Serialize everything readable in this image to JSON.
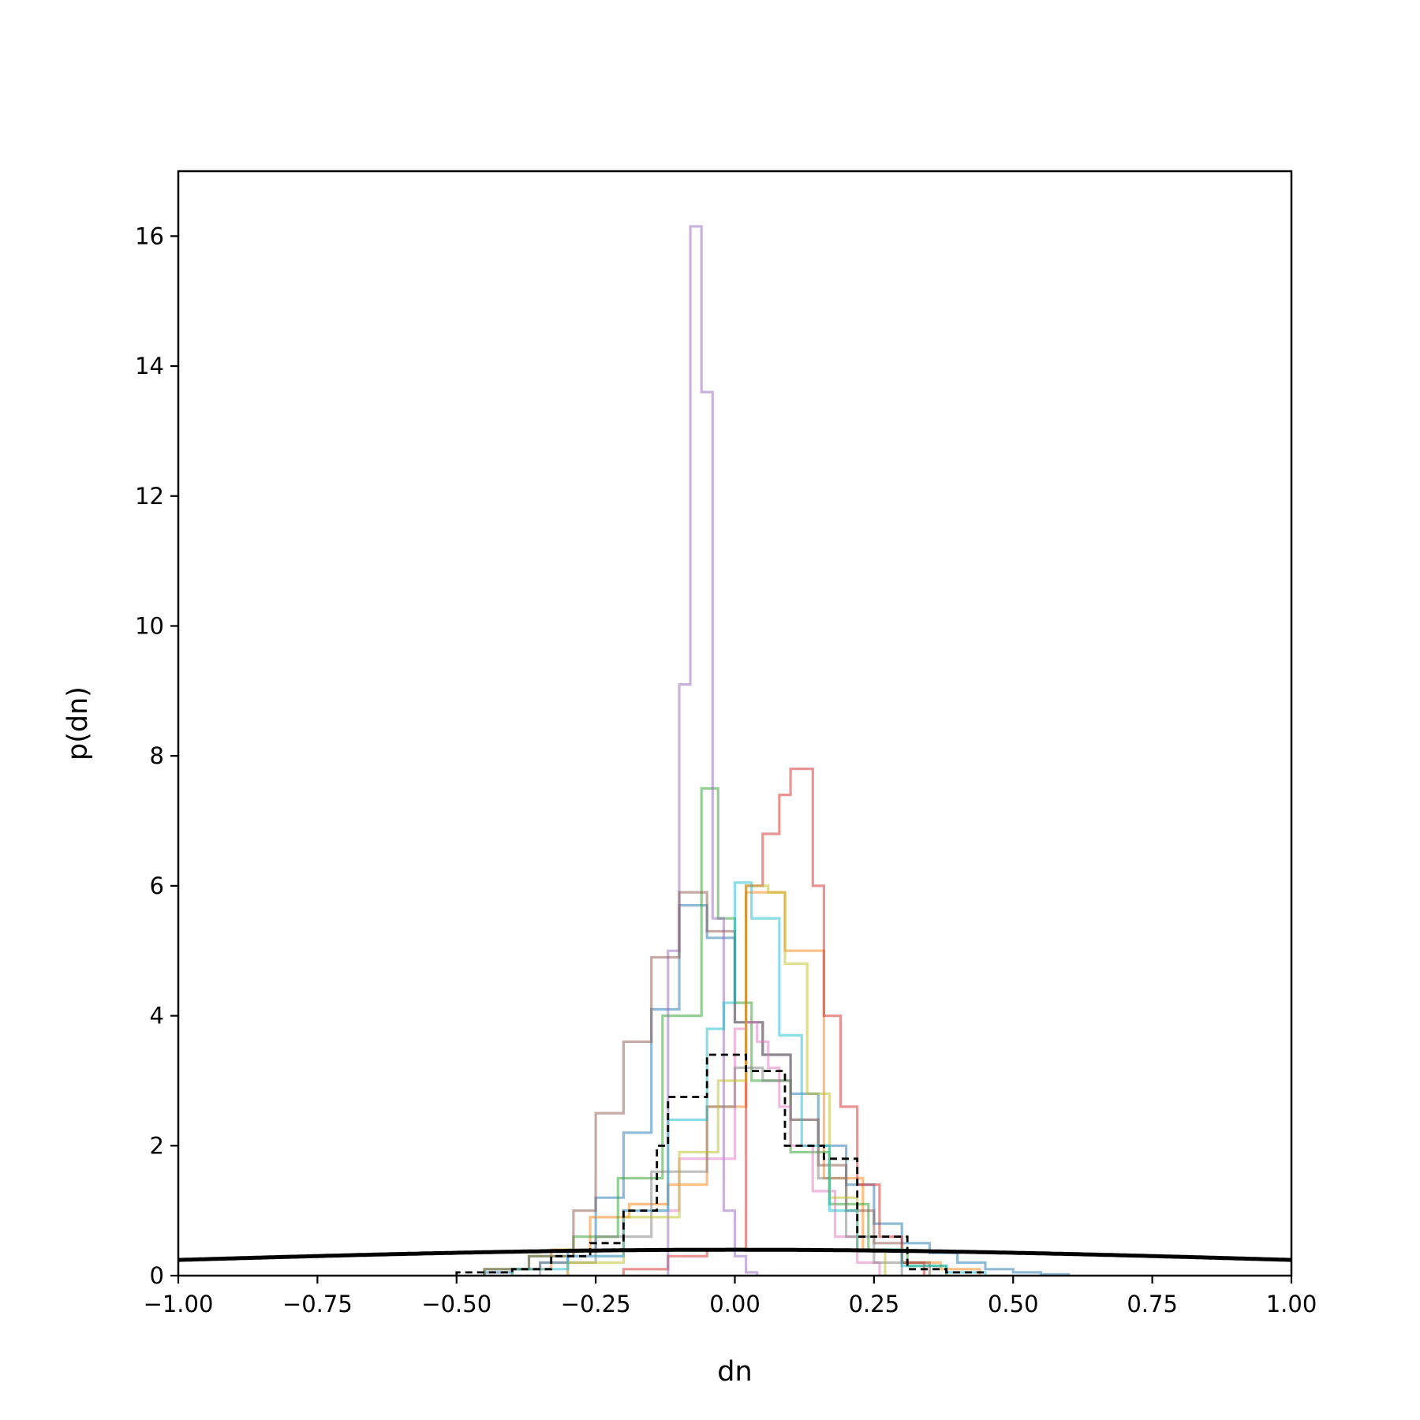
{
  "chart_data": {
    "type": "histogram",
    "xlabel": "dn",
    "ylabel": "p(dn)",
    "xlim": [
      -1.0,
      1.0
    ],
    "ylim": [
      0,
      17
    ],
    "x_ticks": [
      -1.0,
      -0.75,
      -0.5,
      -0.25,
      0.0,
      0.25,
      0.5,
      0.75,
      1.0
    ],
    "x_tick_labels": [
      "−1.00",
      "−0.75",
      "−0.50",
      "−0.25",
      "0.00",
      "0.25",
      "0.50",
      "0.75",
      "1.00"
    ],
    "y_ticks": [
      0,
      2,
      4,
      6,
      8,
      10,
      12,
      14,
      16
    ],
    "y_tick_labels": [
      "0",
      "2",
      "4",
      "6",
      "8",
      "10",
      "12",
      "14",
      "16"
    ],
    "grid": false,
    "legend": "none",
    "series": [
      {
        "color": "#1f77b4",
        "edges": [
          -0.45,
          -0.4,
          -0.35,
          -0.3,
          -0.25,
          -0.2,
          -0.15,
          -0.1,
          -0.05,
          0.0,
          0.05,
          0.1,
          0.15,
          0.2,
          0.25,
          0.3,
          0.35,
          0.4,
          0.45,
          0.5,
          0.55,
          0.6
        ],
        "values": [
          0.05,
          0.1,
          0.2,
          0.4,
          1.2,
          2.2,
          4.1,
          5.7,
          5.2,
          3.9,
          3.4,
          2.8,
          2.0,
          1.4,
          0.8,
          0.5,
          0.35,
          0.2,
          0.1,
          0.05,
          0.02
        ]
      },
      {
        "color": "#ff7f0e",
        "edges": [
          -0.4,
          -0.33,
          -0.26,
          -0.19,
          -0.12,
          -0.05,
          0.02,
          0.09,
          0.16,
          0.23,
          0.3,
          0.37,
          0.44
        ],
        "values": [
          0.1,
          0.4,
          0.9,
          1.1,
          1.4,
          2.6,
          5.9,
          5.0,
          1.5,
          0.4,
          0.2,
          0.1
        ]
      },
      {
        "color": "#2ca02c",
        "edges": [
          -0.45,
          -0.37,
          -0.29,
          -0.21,
          -0.13,
          -0.06,
          -0.03,
          0.0,
          0.03,
          0.1,
          0.17,
          0.24,
          0.31,
          0.38
        ],
        "values": [
          0.1,
          0.3,
          0.6,
          1.5,
          4.0,
          7.5,
          5.5,
          4.2,
          3.0,
          1.9,
          1.1,
          0.4,
          0.15
        ]
      },
      {
        "color": "#d62728",
        "edges": [
          -0.2,
          -0.12,
          -0.05,
          0.02,
          0.05,
          0.08,
          0.1,
          0.12,
          0.14,
          0.16,
          0.19,
          0.22,
          0.26,
          0.3,
          0.34
        ],
        "values": [
          0.1,
          0.3,
          0.4,
          6.0,
          6.8,
          7.4,
          7.8,
          7.8,
          6.0,
          4.0,
          2.6,
          1.4,
          0.6,
          0.2
        ]
      },
      {
        "color": "#9467bd",
        "edges": [
          -0.12,
          -0.1,
          -0.08,
          -0.06,
          -0.04,
          -0.02,
          0.0,
          0.02,
          0.04
        ],
        "values": [
          5.0,
          9.1,
          16.15,
          13.6,
          5.5,
          1.0,
          0.3,
          0.05
        ]
      },
      {
        "color": "#8c564b",
        "edges": [
          -0.45,
          -0.37,
          -0.29,
          -0.25,
          -0.2,
          -0.15,
          -0.1,
          -0.05,
          0.0,
          0.05,
          0.1,
          0.15,
          0.2,
          0.25,
          0.3,
          0.35
        ],
        "values": [
          0.1,
          0.3,
          1.0,
          2.5,
          3.6,
          4.9,
          5.9,
          5.3,
          3.9,
          3.4,
          2.4,
          1.7,
          1.0,
          0.5,
          0.2
        ]
      },
      {
        "color": "#e377c2",
        "edges": [
          -0.3,
          -0.2,
          -0.1,
          0.0,
          0.02,
          0.04,
          0.06,
          0.08,
          0.1,
          0.14,
          0.18,
          0.22,
          0.26
        ],
        "values": [
          0.3,
          1.0,
          1.8,
          3.8,
          3.9,
          3.6,
          3.2,
          2.6,
          2.0,
          1.3,
          0.6,
          0.2
        ]
      },
      {
        "color": "#7f7f7f",
        "edges": [
          -0.35,
          -0.25,
          -0.15,
          -0.05,
          0.0,
          0.05,
          0.1,
          0.15,
          0.2,
          0.25,
          0.3
        ],
        "values": [
          0.2,
          0.6,
          1.6,
          2.6,
          3.2,
          3.0,
          2.4,
          1.5,
          0.6,
          0.2
        ]
      },
      {
        "color": "#bcbd22",
        "edges": [
          -0.3,
          -0.2,
          -0.1,
          -0.03,
          0.02,
          0.06,
          0.09,
          0.13,
          0.17,
          0.22,
          0.27
        ],
        "values": [
          0.2,
          0.9,
          1.9,
          3.0,
          6.0,
          5.9,
          4.8,
          2.8,
          1.2,
          0.4
        ]
      },
      {
        "color": "#17becf",
        "edges": [
          -0.4,
          -0.3,
          -0.2,
          -0.12,
          -0.05,
          -0.02,
          0.0,
          0.03,
          0.08,
          0.12,
          0.17,
          0.22,
          0.3,
          0.38,
          0.45
        ],
        "values": [
          0.1,
          0.3,
          1.0,
          2.4,
          3.8,
          4.2,
          6.05,
          5.5,
          3.7,
          2.0,
          1.0,
          0.4,
          0.15,
          0.05
        ]
      }
    ],
    "aggregate": {
      "style": "dashed",
      "color": "#000000",
      "edges": [
        -0.5,
        -0.4,
        -0.33,
        -0.26,
        -0.2,
        -0.14,
        -0.12,
        -0.05,
        0.02,
        0.09,
        0.16,
        0.22,
        0.31,
        0.38,
        0.45
      ],
      "values": [
        0.05,
        0.1,
        0.3,
        0.5,
        1.0,
        2.0,
        2.75,
        3.4,
        3.15,
        2.0,
        1.8,
        0.6,
        0.1,
        0.05
      ]
    },
    "reference_curve": {
      "type": "normal_pdf",
      "mean": 0.0,
      "std": 1.0,
      "color": "#000000",
      "style": "solid"
    }
  }
}
